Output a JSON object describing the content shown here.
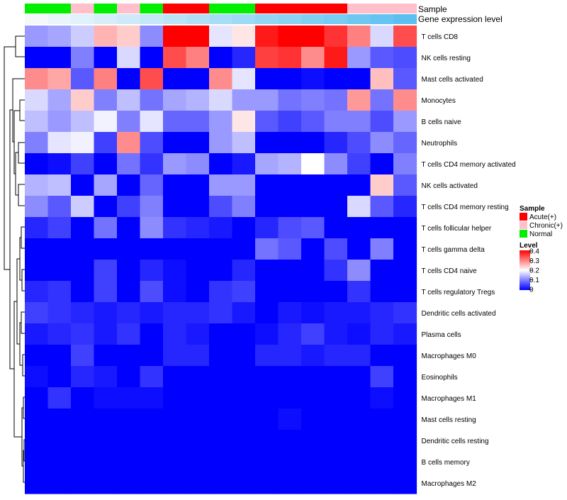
{
  "chart_data": {
    "type": "heatmap",
    "annotation_labels": [
      "Sample",
      "Gene expression level"
    ],
    "rows": [
      "T cells CD8",
      "NK cells resting",
      "Mast cells activated",
      "Monocytes",
      "B cells naive",
      "Neutrophils",
      "T cells CD4 memory activated",
      "NK cells activated",
      "T cells CD4 memory resting",
      "T cells follicular helper",
      "T cells gamma delta",
      "T cells CD4 naive",
      "T cells regulatory  Tregs",
      "Dendritic cells activated",
      "Plasma cells",
      "Macrophages M0",
      "Eosinophils",
      "Macrophages M1",
      "Mast cells resting",
      "Dendritic cells resting",
      "B cells memory",
      "Macrophages M2"
    ],
    "sample_groups": [
      "Normal",
      "Normal",
      "Chronic(+)",
      "Normal",
      "Chronic(+)",
      "Normal",
      "Acute(+)",
      "Acute(+)",
      "Normal",
      "Normal",
      "Acute(+)",
      "Acute(+)",
      "Acute(+)",
      "Acute(+)",
      "Chronic(+)",
      "Chronic(+)",
      "Chronic(+)"
    ],
    "gene_expression_level": [
      0.02,
      0.03,
      0.04,
      0.05,
      0.06,
      0.07,
      0.08,
      0.09,
      0.1,
      0.11,
      0.12,
      0.13,
      0.14,
      0.15,
      0.16,
      0.17,
      0.18
    ],
    "values": [
      [
        0.12,
        0.13,
        0.16,
        0.26,
        0.24,
        0.11,
        0.4,
        0.4,
        0.18,
        0.22,
        0.38,
        0.4,
        0.4,
        0.36,
        0.3,
        0.17,
        0.34
      ],
      [
        0.0,
        0.0,
        0.1,
        0.0,
        0.17,
        0.0,
        0.34,
        0.3,
        0.0,
        0.03,
        0.35,
        0.36,
        0.29,
        0.38,
        0.12,
        0.07,
        0.06
      ],
      [
        0.29,
        0.27,
        0.07,
        0.3,
        0.0,
        0.34,
        0.0,
        0.0,
        0.29,
        0.18,
        0.0,
        0.0,
        0.01,
        0.0,
        0.0,
        0.25,
        0.07
      ],
      [
        0.17,
        0.13,
        0.24,
        0.1,
        0.15,
        0.09,
        0.13,
        0.14,
        0.17,
        0.12,
        0.12,
        0.09,
        0.1,
        0.09,
        0.28,
        0.09,
        0.29
      ],
      [
        0.15,
        0.12,
        0.15,
        0.19,
        0.1,
        0.18,
        0.08,
        0.08,
        0.12,
        0.22,
        0.07,
        0.05,
        0.07,
        0.1,
        0.1,
        0.06,
        0.12
      ],
      [
        0.1,
        0.18,
        0.19,
        0.05,
        0.29,
        0.06,
        0.0,
        0.0,
        0.12,
        0.15,
        0.0,
        0.0,
        0.0,
        0.03,
        0.06,
        0.11,
        0.08
      ],
      [
        0.0,
        0.01,
        0.05,
        0.0,
        0.09,
        0.04,
        0.12,
        0.11,
        0.0,
        0.02,
        0.13,
        0.14,
        0.2,
        0.11,
        0.05,
        0.0,
        0.1
      ],
      [
        0.14,
        0.15,
        0.0,
        0.13,
        0.0,
        0.08,
        0.0,
        0.0,
        0.12,
        0.12,
        0.0,
        0.0,
        0.0,
        0.0,
        0.0,
        0.24,
        0.07
      ],
      [
        0.11,
        0.07,
        0.16,
        0.0,
        0.05,
        0.1,
        0.0,
        0.0,
        0.06,
        0.1,
        0.0,
        0.0,
        0.0,
        0.0,
        0.17,
        0.07,
        0.03
      ],
      [
        0.03,
        0.05,
        0.0,
        0.09,
        0.0,
        0.11,
        0.04,
        0.03,
        0.02,
        0.0,
        0.03,
        0.06,
        0.07,
        0.0,
        0.0,
        0.0,
        0.0
      ],
      [
        0.0,
        0.0,
        0.0,
        0.0,
        0.0,
        0.0,
        0.0,
        0.0,
        0.0,
        0.0,
        0.09,
        0.07,
        0.0,
        0.06,
        0.0,
        0.1,
        0.0
      ],
      [
        0.0,
        0.0,
        0.0,
        0.05,
        0.0,
        0.03,
        0.01,
        0.0,
        0.0,
        0.03,
        0.0,
        0.0,
        0.0,
        0.04,
        0.11,
        0.0,
        0.0
      ],
      [
        0.03,
        0.04,
        0.0,
        0.05,
        0.0,
        0.06,
        0.01,
        0.0,
        0.04,
        0.05,
        0.0,
        0.0,
        0.0,
        0.0,
        0.04,
        0.0,
        0.0
      ],
      [
        0.05,
        0.04,
        0.03,
        0.02,
        0.03,
        0.02,
        0.03,
        0.03,
        0.04,
        0.02,
        0.0,
        0.02,
        0.01,
        0.02,
        0.02,
        0.03,
        0.04
      ],
      [
        0.02,
        0.03,
        0.04,
        0.02,
        0.04,
        0.0,
        0.03,
        0.02,
        0.0,
        0.0,
        0.01,
        0.03,
        0.05,
        0.02,
        0.01,
        0.03,
        0.02
      ],
      [
        0.0,
        0.0,
        0.05,
        0.0,
        0.0,
        0.0,
        0.03,
        0.03,
        0.0,
        0.0,
        0.03,
        0.03,
        0.02,
        0.03,
        0.03,
        0.0,
        0.0
      ],
      [
        0.01,
        0.0,
        0.03,
        0.02,
        0.0,
        0.04,
        0.0,
        0.0,
        0.0,
        0.0,
        0.0,
        0.0,
        0.0,
        0.0,
        0.0,
        0.05,
        0.0
      ],
      [
        0.0,
        0.04,
        0.0,
        0.01,
        0.01,
        0.01,
        0.0,
        0.0,
        0.0,
        0.0,
        0.0,
        0.0,
        0.0,
        0.0,
        0.0,
        0.01,
        0.0
      ],
      [
        0.0,
        0.0,
        0.0,
        0.0,
        0.0,
        0.0,
        0.0,
        0.0,
        0.0,
        0.0,
        0.0,
        0.01,
        0.0,
        0.0,
        0.0,
        0.0,
        0.0
      ],
      [
        0.0,
        0.0,
        0.0,
        0.0,
        0.0,
        0.0,
        0.0,
        0.0,
        0.0,
        0.0,
        0.0,
        0.0,
        0.0,
        0.0,
        0.0,
        0.0,
        0.0
      ],
      [
        0.0,
        0.0,
        0.0,
        0.0,
        0.0,
        0.0,
        0.0,
        0.0,
        0.0,
        0.0,
        0.0,
        0.0,
        0.0,
        0.0,
        0.0,
        0.0,
        0.0
      ],
      [
        0.0,
        0.0,
        0.0,
        0.0,
        0.0,
        0.0,
        0.0,
        0.0,
        0.0,
        0.0,
        0.0,
        0.0,
        0.0,
        0.0,
        0.0,
        0.0,
        0.0
      ]
    ],
    "color_scale": {
      "low": "#0000ff",
      "mid": "#ffffff",
      "high": "#ff0000",
      "range": [
        0,
        0.4
      ]
    },
    "legends": {
      "sample": {
        "title": "Sample",
        "items": [
          {
            "label": "Acute(+)",
            "color": "#ff0000"
          },
          {
            "label": "Chronic(+)",
            "color": "#ffc0cb"
          },
          {
            "label": "Normal",
            "color": "#00ee00"
          }
        ]
      },
      "level": {
        "title": "Level",
        "ticks": [
          "0.4",
          "0.3",
          "0.2",
          "0.1",
          "0"
        ]
      }
    },
    "dendrogram": "row-clustering"
  }
}
